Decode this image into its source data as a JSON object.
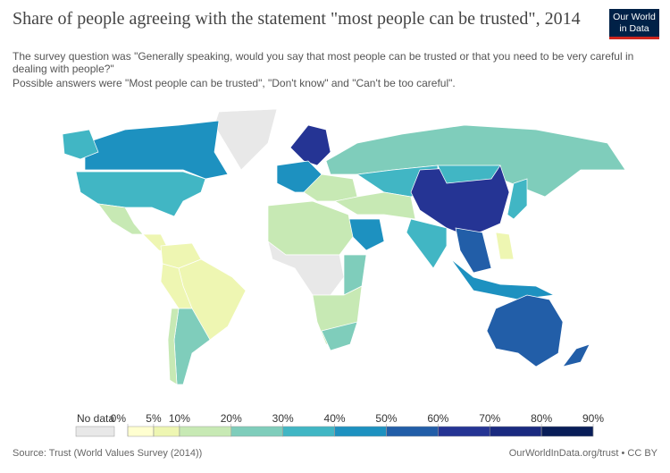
{
  "chart_data": {
    "type": "choropleth",
    "title": "Share of people agreeing with the statement \"most people can be trusted\", 2014",
    "subtitle": [
      "The survey question was \"Generally speaking, would you say that most people can be trusted or that you need to be very careful in dealing with people?\"",
      "Possible answers were \"Most people can be trusted\", \"Don't know\" and \"Can't be too careful\"."
    ],
    "logo": [
      "Our World",
      "in Data"
    ],
    "values": [
      null,
      42,
      35,
      12,
      8,
      5,
      7,
      5,
      23,
      13,
      27,
      65,
      44,
      15,
      38,
      12,
      48,
      18,
      null,
      22,
      15,
      24,
      63,
      33,
      52,
      45,
      36,
      5,
      54,
      57,
      32
    ],
    "no_data_label": "No data",
    "no_data_color": "#e8e8e8",
    "legend": {
      "ticks": [
        {
          "value": 0,
          "label": "0%"
        },
        {
          "value": 5,
          "label": "5%"
        },
        {
          "value": 10,
          "label": "10%"
        },
        {
          "value": 20,
          "label": "20%"
        },
        {
          "value": 30,
          "label": "30%"
        },
        {
          "value": 40,
          "label": "40%"
        },
        {
          "value": 50,
          "label": "50%"
        },
        {
          "value": 60,
          "label": "60%"
        },
        {
          "value": 70,
          "label": "70%"
        },
        {
          "value": 80,
          "label": "80%"
        },
        {
          "value": 90,
          "label": "90%"
        }
      ],
      "colors": [
        "#ffffd0",
        "#eef6b2",
        "#c7e9b4",
        "#7fcdbb",
        "#41b6c4",
        "#1d91c0",
        "#225ea8",
        "#253494",
        "#1a2a80",
        "#081d58"
      ]
    },
    "source": "Source: Trust (World Values Survey (2014))",
    "url": "OurWorldInData.org/trust • CC BY"
  }
}
